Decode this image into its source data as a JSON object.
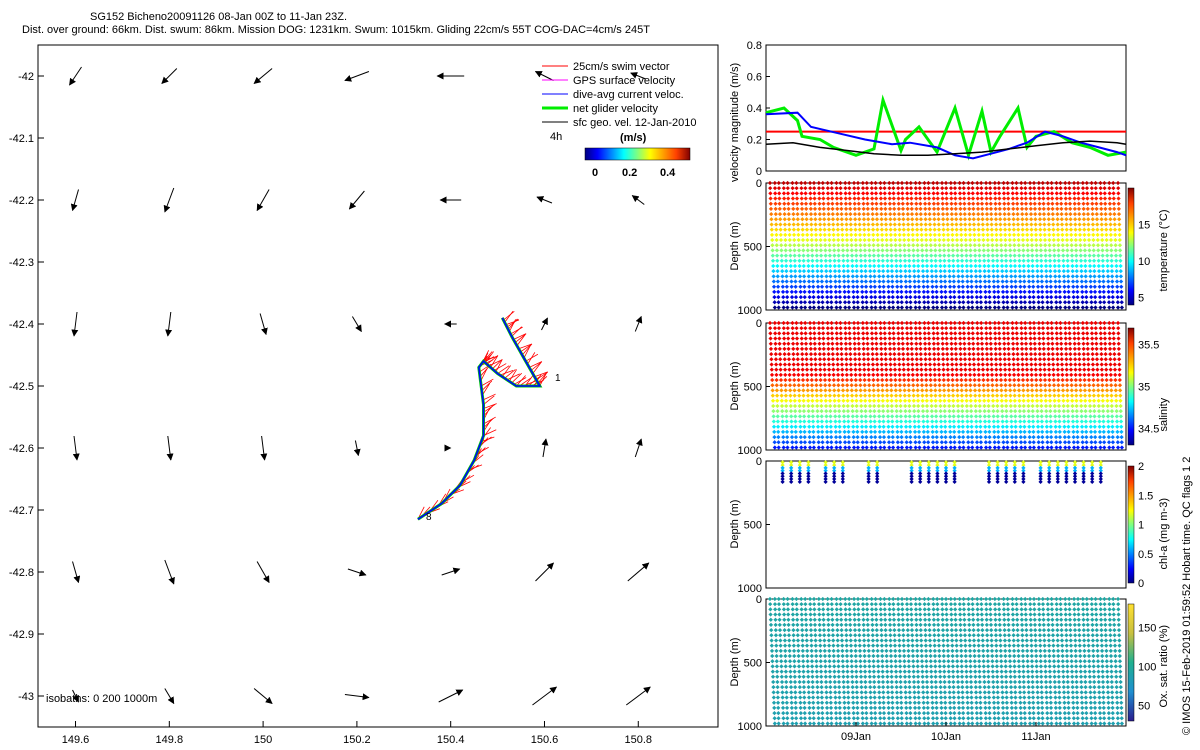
{
  "header": {
    "title": "SG152 Bicheno20091126 08-Jan 00Z to 11-Jan 23Z.",
    "subtitle": "Dist. over ground: 66km. Dist. swum: 86km. Mission DOG: 1231km. Swum: 1015km. Gliding 22cm/s 55T COG-DAC=4cm/s 245T"
  },
  "credit": "© IMOS 15-Feb-2019 01:59:52 Hobart time. QC flags 1  2",
  "colors": {
    "swim": "#ff0000",
    "gps": "#ff00ff",
    "dac": "#0000ff",
    "net": "#00ee00",
    "geo": "#000000"
  },
  "chart_data": [
    {
      "type": "map",
      "xlim": [
        149.52,
        150.97
      ],
      "ylim": [
        -43.05,
        -41.95
      ],
      "xticks": [
        "149.6",
        "149.8",
        "150",
        "150.2",
        "150.4",
        "150.6",
        "150.8"
      ],
      "xtick_values": [
        149.6,
        149.8,
        150.0,
        150.2,
        150.4,
        150.6,
        150.8
      ],
      "yticks": [
        "-42",
        "-42.1",
        "-42.2",
        "-42.3",
        "-42.4",
        "-42.5",
        "-42.6",
        "-42.7",
        "-42.8",
        "-42.9",
        "-43"
      ],
      "ytick_values": [
        -42,
        -42.1,
        -42.2,
        -42.3,
        -42.4,
        -42.5,
        -42.6,
        -42.7,
        -42.8,
        -42.9,
        -43
      ],
      "legend": [
        {
          "label": "25cm/s swim vector",
          "color": "#ff0000"
        },
        {
          "label": "GPS surface velocity",
          "color": "#ff00ff"
        },
        {
          "label": "dive-avg current veloc.",
          "color": "#0000ff"
        },
        {
          "label": "net glider velocity",
          "color": "#00ee00"
        },
        {
          "label": "sfc geo. vel. 12-Jan-2010",
          "color": "#000000"
        }
      ],
      "legend_placement": "top-right",
      "colorbar": {
        "label": "(m/s)",
        "time_label": "4h",
        "ticks": [
          "0",
          "0.2",
          "0.4"
        ],
        "range": [
          0,
          0.5
        ]
      },
      "isobath_label": "isobaths: 0   200  1000m",
      "point_labels": [
        "8",
        "1"
      ],
      "track": {
        "lon": [
          150.33,
          150.38,
          150.42,
          150.45,
          150.47,
          150.47,
          150.46,
          150.47,
          150.5,
          150.54,
          150.59,
          150.56,
          150.53,
          150.51
        ],
        "lat": [
          -42.715,
          -42.69,
          -42.66,
          -42.62,
          -42.58,
          -42.53,
          -42.47,
          -42.46,
          -42.48,
          -42.5,
          -42.5,
          -42.46,
          -42.42,
          -42.39
        ]
      },
      "geo_vector_field": {
        "lon": [
          149.6,
          149.8,
          150.0,
          150.2,
          150.4,
          150.6,
          150.8
        ],
        "lat": [
          -42.0,
          -42.2,
          -42.4,
          -42.6,
          -42.8,
          -43.0
        ],
        "u": [
          [
            -0.04,
            -0.05,
            -0.06,
            -0.08,
            -0.09,
            -0.06,
            -0.05
          ],
          [
            -0.02,
            -0.03,
            -0.04,
            -0.05,
            -0.07,
            -0.05,
            -0.04
          ],
          [
            -0.01,
            -0.01,
            0.02,
            0.03,
            -0.04,
            0.02,
            0.02
          ],
          [
            0.01,
            0.01,
            0.01,
            0.01,
            0.0,
            0.01,
            0.02
          ],
          [
            0.02,
            0.03,
            0.04,
            0.06,
            0.06,
            0.06,
            0.07
          ],
          [
            0.02,
            0.03,
            0.06,
            0.08,
            0.08,
            0.08,
            0.08
          ]
        ],
        "v": [
          [
            -0.06,
            -0.05,
            -0.05,
            -0.03,
            0.0,
            0.03,
            0.02
          ],
          [
            -0.07,
            -0.08,
            -0.07,
            -0.06,
            0.0,
            0.02,
            0.03
          ],
          [
            -0.08,
            -0.08,
            -0.07,
            -0.05,
            0.0,
            0.04,
            0.05
          ],
          [
            -0.08,
            -0.08,
            -0.08,
            -0.05,
            0.0,
            0.06,
            0.06
          ],
          [
            -0.07,
            -0.08,
            -0.07,
            -0.02,
            0.02,
            0.06,
            0.06
          ],
          [
            -0.04,
            -0.05,
            -0.05,
            -0.01,
            0.04,
            0.06,
            0.06
          ]
        ]
      }
    },
    {
      "type": "line",
      "ylabel": "velocity magnitude (m/s)",
      "ylim": [
        0,
        0.8
      ],
      "yticks": [
        "0",
        "0.2",
        "0.4",
        "0.6",
        "0.8"
      ],
      "xlim": [
        0,
        4
      ],
      "series": [
        {
          "color": "#ff0000",
          "x": [
            0,
            4
          ],
          "y": [
            0.25,
            0.25
          ]
        },
        {
          "color": "#00ee00",
          "x": [
            0,
            0.2,
            0.35,
            0.4,
            0.6,
            0.75,
            1.0,
            1.2,
            1.3,
            1.5,
            1.55,
            1.7,
            1.9,
            2.1,
            2.25,
            2.4,
            2.5,
            2.6,
            2.8,
            2.9,
            3.0,
            3.2,
            3.4,
            3.6,
            3.8,
            4.0
          ],
          "y": [
            0.37,
            0.4,
            0.32,
            0.22,
            0.2,
            0.15,
            0.1,
            0.14,
            0.45,
            0.13,
            0.2,
            0.28,
            0.12,
            0.4,
            0.1,
            0.38,
            0.12,
            0.22,
            0.4,
            0.15,
            0.22,
            0.25,
            0.18,
            0.15,
            0.1,
            0.12
          ]
        },
        {
          "color": "#0000ff",
          "x": [
            0,
            0.35,
            0.5,
            0.8,
            1.1,
            1.4,
            1.6,
            1.9,
            2.1,
            2.3,
            2.5,
            2.7,
            2.9,
            3.1,
            3.3,
            3.5,
            3.7,
            3.9,
            4.0
          ],
          "y": [
            0.36,
            0.37,
            0.28,
            0.24,
            0.2,
            0.17,
            0.18,
            0.15,
            0.1,
            0.08,
            0.11,
            0.14,
            0.18,
            0.25,
            0.22,
            0.18,
            0.15,
            0.12,
            0.1
          ]
        },
        {
          "color": "#000000",
          "x": [
            0,
            0.3,
            0.6,
            0.9,
            1.2,
            1.5,
            1.8,
            2.1,
            2.4,
            2.7,
            3.0,
            3.3,
            3.6,
            3.9,
            4.0
          ],
          "y": [
            0.17,
            0.18,
            0.15,
            0.13,
            0.11,
            0.1,
            0.1,
            0.11,
            0.12,
            0.14,
            0.16,
            0.18,
            0.19,
            0.18,
            0.17
          ]
        }
      ]
    },
    {
      "type": "scatter",
      "ylabel": "Depth (m)",
      "colorbar_label": "temperature (°C)",
      "yticks": [
        "0",
        "500",
        "1000"
      ],
      "ylim": [
        1000,
        0
      ],
      "cticks": [
        "5",
        "10",
        "15"
      ],
      "crange": [
        4,
        20
      ],
      "dives": 40,
      "max_depth": 1000
    },
    {
      "type": "scatter",
      "ylabel": "Depth (m)",
      "colorbar_label": "salinity",
      "yticks": [
        "0",
        "500",
        "1000"
      ],
      "ylim": [
        1000,
        0
      ],
      "cticks": [
        "34.5",
        "35",
        "35.5"
      ],
      "crange": [
        34.3,
        35.7
      ],
      "dives": 40,
      "max_depth": 1000
    },
    {
      "type": "scatter",
      "ylabel": "Depth (m)",
      "colorbar_label": "chl-a (mg m-3)",
      "yticks": [
        "0",
        "500",
        "1000"
      ],
      "ylim": [
        1000,
        0
      ],
      "cticks": [
        "0",
        "0.5",
        "1",
        "1.5",
        "2"
      ],
      "crange": [
        0,
        2
      ],
      "dives": 40,
      "max_depth": 180
    },
    {
      "type": "scatter",
      "ylabel": "Depth (m)",
      "colorbar_label": "Ox. sat. ratio (%)",
      "yticks": [
        "0",
        "500",
        "1000"
      ],
      "ylim": [
        1000,
        0
      ],
      "cticks": [
        "50",
        "100",
        "150"
      ],
      "crange": [
        30,
        180
      ],
      "dives": 40,
      "max_depth": 1000,
      "xticks": [
        "09Jan",
        "10Jan",
        "11Jan"
      ],
      "xtick_values": [
        1,
        2,
        3
      ],
      "xlim": [
        0,
        4
      ]
    }
  ]
}
